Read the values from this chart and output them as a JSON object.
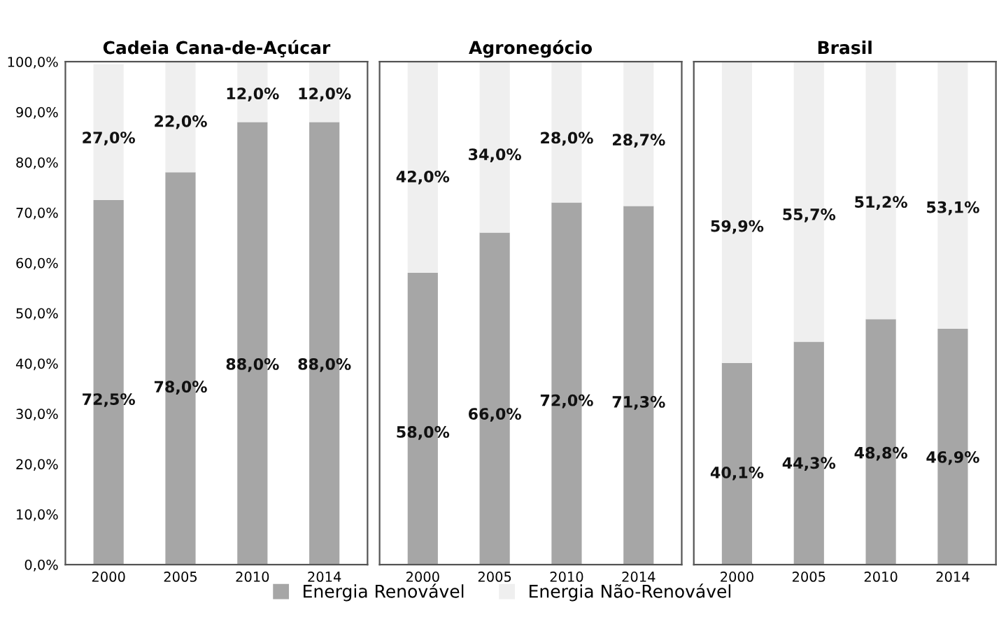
{
  "chart_data": [
    {
      "type": "bar",
      "title": "Cadeia Cana-de-Açúcar",
      "stacked": true,
      "categories": [
        "2000",
        "2005",
        "2010",
        "2014"
      ],
      "ylim": [
        0,
        100
      ],
      "yticks": [
        {
          "value": 0,
          "label": "0,0%"
        },
        {
          "value": 10,
          "label": "10,0%"
        },
        {
          "value": 20,
          "label": "20,0%"
        },
        {
          "value": 30,
          "label": "30,0%"
        },
        {
          "value": 40,
          "label": "40,0%"
        },
        {
          "value": 50,
          "label": "50,0%"
        },
        {
          "value": 60,
          "label": "60,0%"
        },
        {
          "value": 70,
          "label": "70,0%"
        },
        {
          "value": 80,
          "label": "80,0%"
        },
        {
          "value": 90,
          "label": "90,0%"
        },
        {
          "value": 100,
          "label": "100,0%"
        }
      ],
      "legend": "bottom",
      "series": [
        {
          "name": "Energia Renovável",
          "color": "#a6a6a6",
          "values": [
            72.5,
            78.0,
            88.0,
            88.0
          ],
          "value_labels": [
            "72,5%",
            "78,0%",
            "88,0%",
            "88,0%"
          ]
        },
        {
          "name": "Energia Não-Renovável",
          "color": "#efefef",
          "values": [
            27.0,
            22.0,
            12.0,
            12.0
          ],
          "value_labels": [
            "27,0%",
            "22,0%",
            "12,0%",
            "12,0%"
          ]
        }
      ]
    },
    {
      "type": "bar",
      "title": "Agronegócio",
      "stacked": true,
      "categories": [
        "2000",
        "2005",
        "2010",
        "2014"
      ],
      "ylim": [
        0,
        100
      ],
      "tick_labels": "x",
      "series": [
        {
          "color": "#a6a6a6",
          "values": [
            58.0,
            66.0,
            72.0,
            71.3
          ],
          "value_labels": [
            "58,0%",
            "66,0%",
            "72,0%",
            "71,3%"
          ]
        },
        {
          "color": "#efefef",
          "values": [
            42.0,
            34.0,
            28.0,
            28.7
          ],
          "value_labels": [
            "42,0%",
            "34,0%",
            "28,0%",
            "28,7%"
          ]
        }
      ]
    },
    {
      "type": "bar",
      "title": "Brasil",
      "stacked": true,
      "categories": [
        "2000",
        "2005",
        "2010",
        "2014"
      ],
      "ylim": [
        0,
        100
      ],
      "tick_labels": "x",
      "series": [
        {
          "color": "#a6a6a6",
          "values": [
            40.1,
            44.3,
            48.8,
            46.9
          ],
          "value_labels": [
            "40,1%",
            "44,3%",
            "48,8%",
            "46,9%"
          ]
        },
        {
          "color": "#efefef",
          "values": [
            59.9,
            55.7,
            51.2,
            53.1
          ],
          "value_labels": [
            "59,9%",
            "55,7%",
            "51,2%",
            "53,1%"
          ]
        }
      ]
    }
  ]
}
